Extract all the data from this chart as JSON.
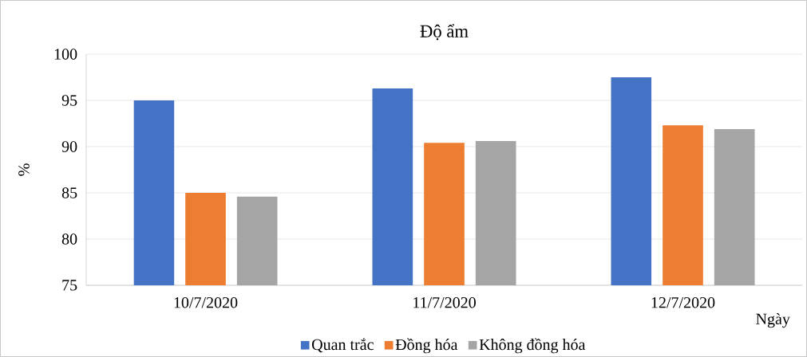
{
  "chart_data": {
    "type": "bar",
    "title": "Độ ẩm",
    "xlabel": "Ngày",
    "ylabel": "%",
    "categories": [
      "10/7/2020",
      "11/7/2020",
      "12/7/2020"
    ],
    "series": [
      {
        "name": "Quan trắc",
        "color": "#4472c4",
        "values": [
          95.0,
          96.3,
          97.5
        ]
      },
      {
        "name": "Đồng hóa",
        "color": "#ed7d31",
        "values": [
          85.0,
          90.4,
          92.3
        ]
      },
      {
        "name": "Không đồng hóa",
        "color": "#a5a5a5",
        "values": [
          84.6,
          90.6,
          91.9
        ]
      }
    ],
    "ylim": [
      75,
      100
    ],
    "yticks": [
      75,
      80,
      85,
      90,
      95,
      100
    ],
    "grid": "y",
    "legend": "bottom"
  }
}
